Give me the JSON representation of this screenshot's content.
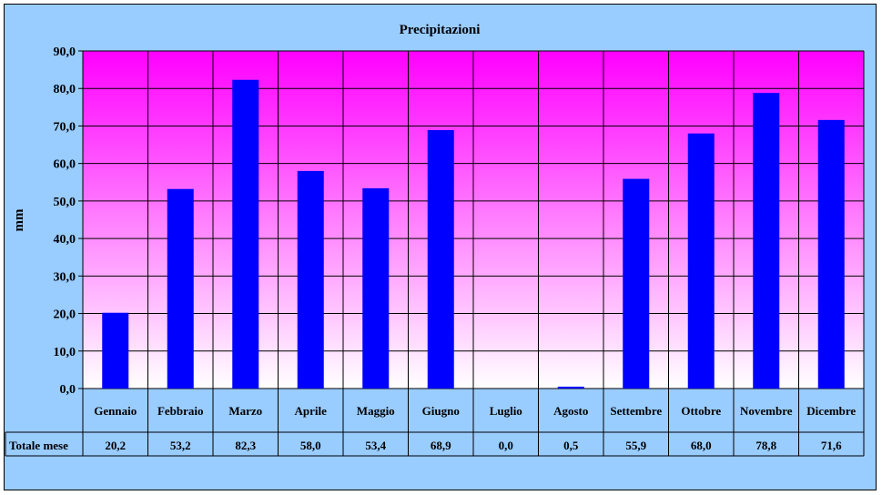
{
  "chart_data": {
    "type": "bar",
    "title": "Precipitazioni",
    "ylabel": "mm",
    "xlabel": "",
    "ylim": [
      0,
      90
    ],
    "y_ticks": [
      "0,0",
      "10,0",
      "20,0",
      "30,0",
      "40,0",
      "50,0",
      "60,0",
      "70,0",
      "80,0",
      "90,0"
    ],
    "categories": [
      "Gennaio",
      "Febbraio",
      "Marzo",
      "Aprile",
      "Maggio",
      "Giugno",
      "Luglio",
      "Agosto",
      "Settembre",
      "Ottobre",
      "Novembre",
      "Dicembre"
    ],
    "values": [
      20.2,
      53.2,
      82.3,
      58.0,
      53.4,
      68.9,
      0.0,
      0.5,
      55.9,
      68.0,
      78.8,
      71.6
    ],
    "grid": true,
    "colors": {
      "bar": "#0000ff",
      "plot_top": "#ff00ff",
      "plot_bottom": "#ffffff",
      "background": "#99ccff"
    },
    "table": {
      "row_label": "Totale mese",
      "values": [
        "20,2",
        "53,2",
        "82,3",
        "58,0",
        "53,4",
        "68,9",
        "0,0",
        "0,5",
        "55,9",
        "68,0",
        "78,8",
        "71,6"
      ]
    }
  }
}
